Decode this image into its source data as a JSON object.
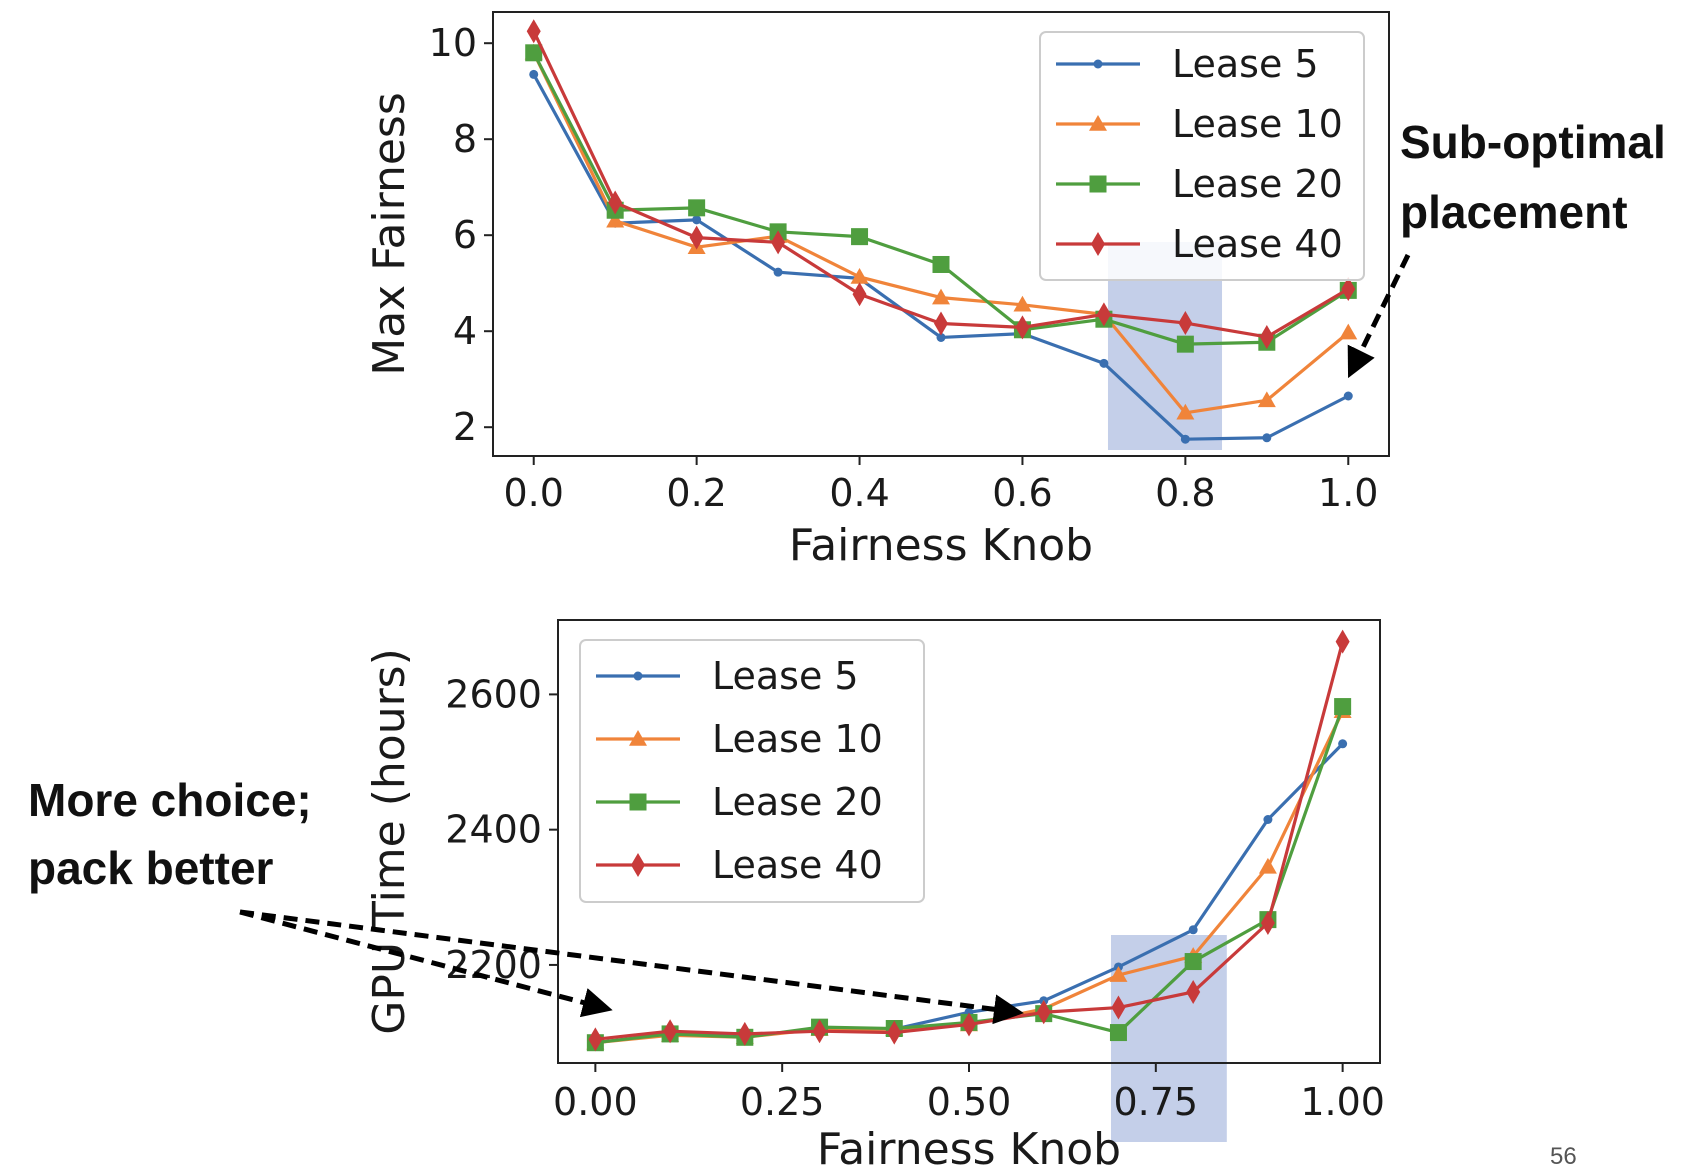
{
  "colors": {
    "lease5": "#3a6fb0",
    "lease10": "#f0843a",
    "lease20": "#4f9e3f",
    "lease40": "#c83a3a",
    "highlight": "#b3c1e3"
  },
  "chart_data": [
    {
      "type": "line",
      "title": "",
      "xlabel": "Fairness Knob",
      "ylabel": "Max Fairness",
      "xlim": [
        -0.05,
        1.05
      ],
      "ylim": [
        1.4,
        10.65
      ],
      "xticks": [
        0.0,
        0.2,
        0.4,
        0.6,
        0.8,
        1.0
      ],
      "xtick_labels": [
        "0.0",
        "0.2",
        "0.4",
        "0.6",
        "0.8",
        "1.0"
      ],
      "yticks": [
        2,
        4,
        6,
        8,
        10
      ],
      "ytick_labels": [
        "2",
        "4",
        "6",
        "8",
        "10"
      ],
      "legend": "top-right",
      "highlight_x": [
        0.705,
        0.845
      ],
      "x": [
        0.0,
        0.1,
        0.2,
        0.3,
        0.4,
        0.5,
        0.6,
        0.7,
        0.8,
        0.9,
        1.0
      ],
      "series": [
        {
          "name": "Lease 5",
          "color_key": "lease5",
          "marker": "dot",
          "values": [
            9.35,
            6.25,
            6.32,
            5.23,
            5.1,
            3.87,
            3.95,
            3.33,
            1.75,
            1.78,
            2.65
          ]
        },
        {
          "name": "Lease 10",
          "color_key": "lease10",
          "marker": "triangle",
          "values": [
            9.8,
            6.3,
            5.75,
            5.98,
            5.13,
            4.7,
            4.55,
            4.35,
            2.3,
            2.56,
            3.97
          ]
        },
        {
          "name": "Lease 20",
          "color_key": "lease20",
          "marker": "square",
          "values": [
            9.8,
            6.52,
            6.57,
            6.07,
            5.97,
            5.39,
            4.03,
            4.25,
            3.73,
            3.77,
            4.85
          ]
        },
        {
          "name": "Lease 40",
          "color_key": "lease40",
          "marker": "diamond",
          "values": [
            10.25,
            6.68,
            5.95,
            5.85,
            4.77,
            4.16,
            4.08,
            4.35,
            4.17,
            3.88,
            4.88
          ]
        }
      ]
    },
    {
      "type": "line",
      "title": "",
      "xlabel": "Fairness Knob",
      "ylabel": "GPU Time (hours)",
      "xlim": [
        -0.05,
        1.05
      ],
      "ylim": [
        2055,
        2710
      ],
      "xticks": [
        0.0,
        0.25,
        0.5,
        0.75,
        1.0
      ],
      "xtick_labels": [
        "0.00",
        "0.25",
        "0.50",
        "0.75",
        "1.00"
      ],
      "yticks": [
        2200,
        2400,
        2600
      ],
      "ytick_labels": [
        "2200",
        "2400",
        "2600"
      ],
      "legend": "top-left",
      "highlight_x": [
        0.69,
        0.845
      ],
      "x": [
        0.0,
        0.1,
        0.2,
        0.3,
        0.4,
        0.5,
        0.6,
        0.7,
        0.8,
        0.9,
        1.0
      ],
      "series": [
        {
          "name": "Lease 5",
          "color_key": "lease5",
          "marker": "dot",
          "values": [
            2085,
            2098,
            2095,
            2105,
            2105,
            2130,
            2147,
            2197,
            2252,
            2415,
            2527
          ]
        },
        {
          "name": "Lease 10",
          "color_key": "lease10",
          "marker": "triangle",
          "values": [
            2085,
            2096,
            2093,
            2105,
            2105,
            2112,
            2135,
            2185,
            2213,
            2345,
            2575
          ]
        },
        {
          "name": "Lease 20",
          "color_key": "lease20",
          "marker": "square",
          "values": [
            2085,
            2098,
            2093,
            2108,
            2106,
            2115,
            2128,
            2100,
            2205,
            2267,
            2582
          ]
        },
        {
          "name": "Lease 40",
          "color_key": "lease40",
          "marker": "diamond",
          "values": [
            2090,
            2102,
            2098,
            2102,
            2100,
            2112,
            2130,
            2137,
            2160,
            2262,
            2678
          ]
        }
      ]
    }
  ],
  "annotations": {
    "top": [
      "Sub-optimal",
      "placement"
    ],
    "bottom": [
      "More choice;",
      "pack better"
    ]
  },
  "page_number": "56"
}
